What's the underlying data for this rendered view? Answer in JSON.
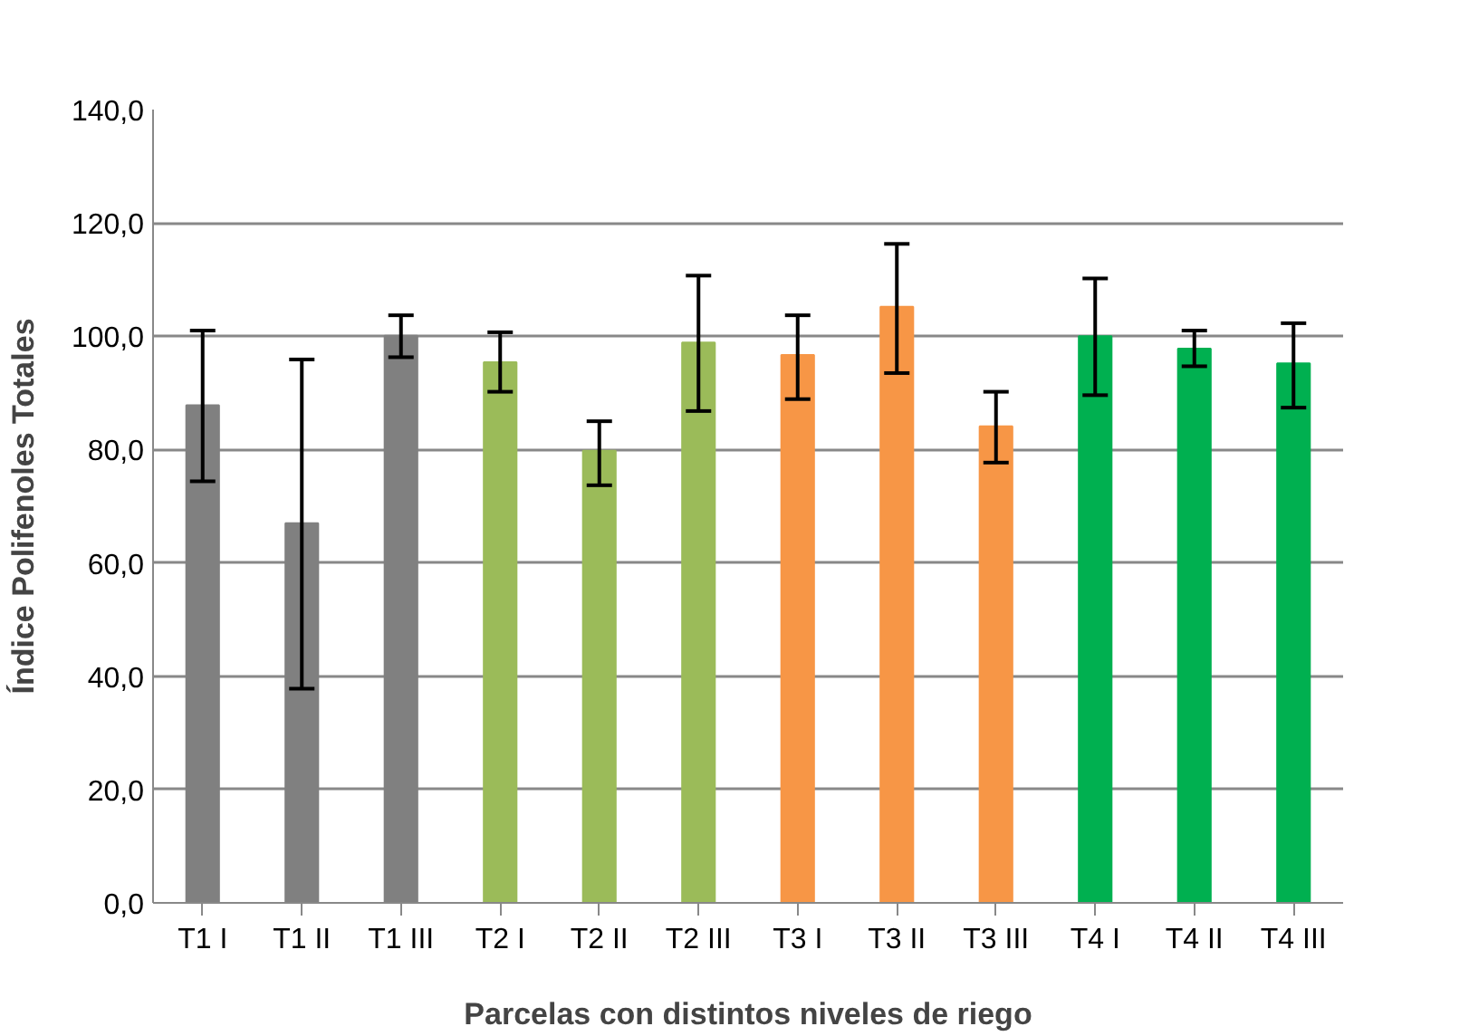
{
  "chart_data": {
    "type": "bar",
    "xlabel": "Parcelas con distintos niveles de riego",
    "ylabel": "Índice Polifenoles Totales",
    "categories": [
      "T1 I",
      "T1 II",
      "T1 III",
      "T2 I",
      "T2 II",
      "T2 III",
      "T3 I",
      "T3 II",
      "T3 III",
      "T4 I",
      "T4 II",
      "T4 III"
    ],
    "values": [
      87.8,
      67.0,
      100.1,
      95.4,
      79.8,
      98.9,
      96.7,
      105.2,
      84.1,
      100.0,
      97.8,
      95.2
    ],
    "colors": [
      "#808080",
      "#808080",
      "#808080",
      "#9bbb59",
      "#9bbb59",
      "#9bbb59",
      "#f79646",
      "#f79646",
      "#f79646",
      "#00b050",
      "#00b050",
      "#00b050"
    ],
    "errors": [
      [
        74.4,
        101.0
      ],
      [
        37.8,
        95.9
      ],
      [
        96.3,
        103.7
      ],
      [
        90.2,
        100.7
      ],
      [
        73.7,
        85.0
      ],
      [
        86.8,
        110.7
      ],
      [
        88.9,
        103.7
      ],
      [
        93.5,
        116.3
      ],
      [
        77.7,
        90.2
      ],
      [
        89.6,
        110.2
      ],
      [
        94.7,
        101.0
      ],
      [
        87.4,
        102.3
      ]
    ],
    "ylim": [
      0,
      140
    ],
    "yticks": [
      {
        "value": 0,
        "label": "0,0"
      },
      {
        "value": 20,
        "label": "20,0"
      },
      {
        "value": 40,
        "label": "40,0"
      },
      {
        "value": 60,
        "label": "60,0"
      },
      {
        "value": 80,
        "label": "80,0"
      },
      {
        "value": 100,
        "label": "100,0"
      },
      {
        "value": 120,
        "label": "120,0"
      },
      {
        "value": 140,
        "label": "140,0"
      }
    ],
    "grid": "y"
  }
}
